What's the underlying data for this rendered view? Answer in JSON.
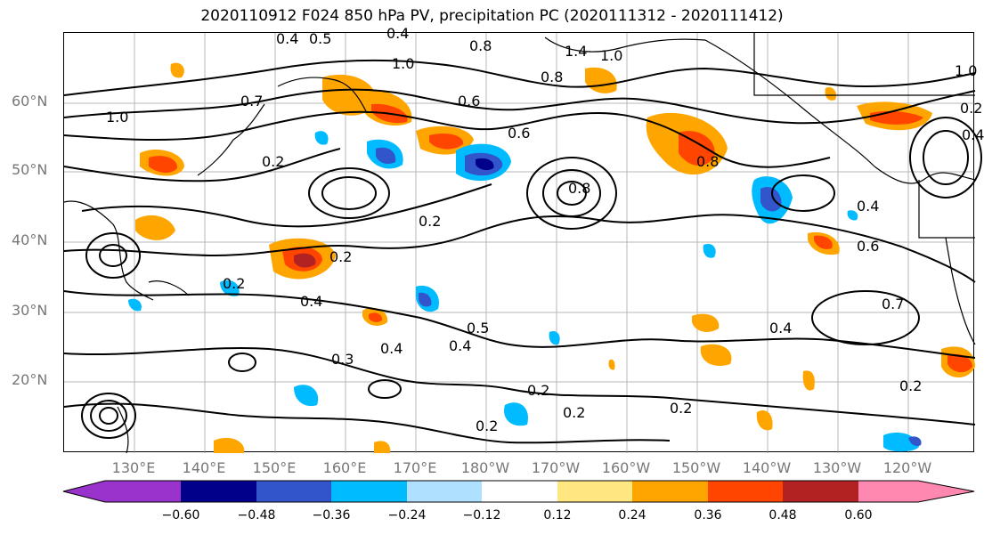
{
  "title": "2020110912 F024 850 hPa PV, precipitation PC (2020111312 - 2020111412)",
  "latitude_labels": [
    "60°N",
    "50°N",
    "40°N",
    "30°N",
    "20°N"
  ],
  "longitude_labels": [
    "130°E",
    "140°E",
    "150°E",
    "160°E",
    "170°E",
    "180°W",
    "170°W",
    "160°W",
    "150°W",
    "140°W",
    "130°W",
    "120°W"
  ],
  "colorbar": {
    "ticks": [
      "−0.60",
      "−0.48",
      "−0.36",
      "−0.24",
      "−0.12",
      "0.12",
      "0.24",
      "0.36",
      "0.48",
      "0.60"
    ],
    "colors": [
      "#9933cc",
      "#00008b",
      "#3355cc",
      "#00bbff",
      "#b0e0ff",
      "#ffffff",
      "#ffe680",
      "#ffa500",
      "#ff4500",
      "#b22222",
      "#ff88b0"
    ]
  },
  "contour_labels": [
    {
      "text": "0.4"
    },
    {
      "text": "0.5"
    },
    {
      "text": "0.4"
    },
    {
      "text": "1.0"
    },
    {
      "text": "0.8"
    },
    {
      "text": "0.7"
    },
    {
      "text": "1.0"
    },
    {
      "text": "0.6"
    },
    {
      "text": "0.8"
    },
    {
      "text": "1.4"
    },
    {
      "text": "1.0"
    },
    {
      "text": "0.6"
    },
    {
      "text": "0.2"
    },
    {
      "text": "0.2"
    },
    {
      "text": "0.2"
    },
    {
      "text": "0.2"
    },
    {
      "text": "0.4"
    },
    {
      "text": "0.3"
    },
    {
      "text": "0.4"
    },
    {
      "text": "0.4"
    },
    {
      "text": "0.5"
    },
    {
      "text": "0.2"
    },
    {
      "text": "0.2"
    },
    {
      "text": "0.2"
    },
    {
      "text": "0.2"
    },
    {
      "text": "0.4"
    },
    {
      "text": "0.2"
    },
    {
      "text": "0.7"
    },
    {
      "text": "0.8"
    },
    {
      "text": "0.4"
    },
    {
      "text": "0.6"
    },
    {
      "text": "0.4"
    },
    {
      "text": "0.8"
    },
    {
      "text": "0.2"
    },
    {
      "text": "1.0"
    }
  ]
}
